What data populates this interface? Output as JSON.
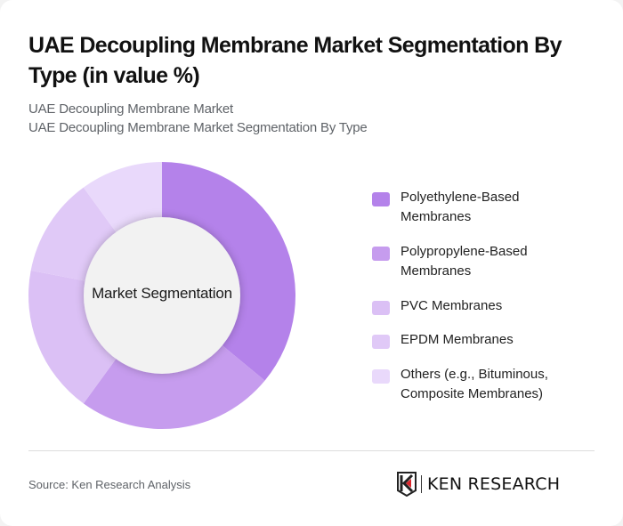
{
  "header": {
    "title": "UAE Decoupling Membrane Market Segmentation By Type (in value %)",
    "subtitle_line1": "UAE Decoupling Membrane Market",
    "subtitle_line2": "UAE Decoupling Membrane Market Segmentation By Type"
  },
  "chart": {
    "center_label": "Market Segmentation"
  },
  "legend": {
    "items": [
      {
        "label": "Polyethylene-Based Membranes",
        "color": "#b482ea"
      },
      {
        "label": "Polypropylene-Based Membranes",
        "color": "#c69cee"
      },
      {
        "label": "PVC Membranes",
        "color": "#dbc0f5"
      },
      {
        "label": "EPDM Membranes",
        "color": "#e0c9f7"
      },
      {
        "label": "Others (e.g., Bituminous, Composite Membranes)",
        "color": "#e9d9fb"
      }
    ]
  },
  "footer": {
    "source": "Source: Ken Research Analysis",
    "logo_text": "KEN RESEARCH"
  },
  "chart_data": {
    "type": "pie",
    "variant": "donut",
    "title": "UAE Decoupling Membrane Market Segmentation By Type (in value %)",
    "center_label": "Market Segmentation",
    "categories": [
      "Polyethylene-Based Membranes",
      "Polypropylene-Based Membranes",
      "PVC Membranes",
      "EPDM Membranes",
      "Others (e.g., Bituminous, Composite Membranes)"
    ],
    "values": [
      36,
      24,
      18,
      12,
      10
    ],
    "colors": [
      "#b482ea",
      "#c69cee",
      "#dbc0f5",
      "#e0c9f7",
      "#e9d9fb"
    ],
    "unit": "%",
    "start_angle": "12 o'clock, clockwise",
    "legend_position": "right"
  }
}
